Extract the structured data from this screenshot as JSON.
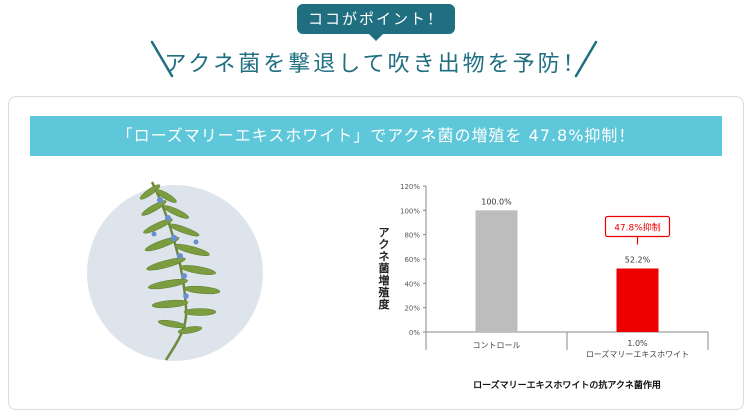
{
  "header": {
    "badge": "ココがポイント！",
    "headline": "アクネ菌を撃退して吹き出物を予防！"
  },
  "banner": {
    "text": "「ローズマリーエキスホワイト」でアクネ菌の増殖を 47.8%抑制！"
  },
  "colors": {
    "accent_dark": "#1f6f80",
    "accent_light": "#5ec7d9",
    "control_bar": "#bdbdbd",
    "treated_bar": "#ee0000",
    "callout": "#ee0000"
  },
  "illustration": {
    "icon": "rosemary-sprig-icon"
  },
  "chart_data": {
    "type": "bar",
    "title": "",
    "xlabel": "ローズマリーエキスホワイトの抗アクネ菌作用",
    "ylabel": "アクネ菌増殖度",
    "ylim": [
      0,
      120
    ],
    "yticks": [
      "0%",
      "20%",
      "40%",
      "60%",
      "80%",
      "100%",
      "120%"
    ],
    "ytick_values": [
      0,
      20,
      40,
      60,
      80,
      100,
      120
    ],
    "grid": false,
    "categories": [
      [
        "コントロール"
      ],
      [
        "1.0%",
        "ローズマリーエキスホワイト"
      ]
    ],
    "values": [
      100.0,
      52.2
    ],
    "data_labels": [
      "100.0%",
      "52.2%"
    ],
    "bar_colors": [
      "#bdbdbd",
      "#ee0000"
    ],
    "annotation": "47.8%抑制"
  }
}
